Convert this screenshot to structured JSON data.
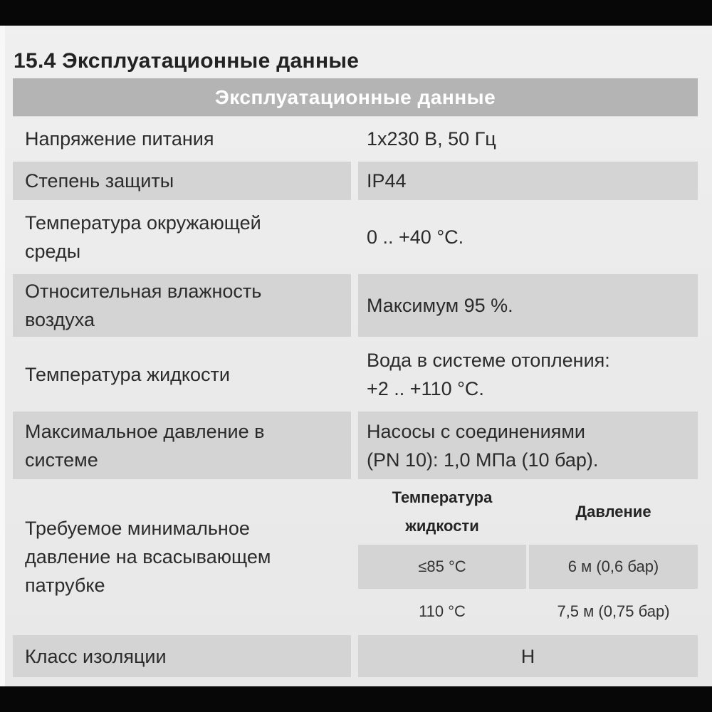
{
  "page": {
    "section_title": "15.4 Эксплуатационные данные"
  },
  "table": {
    "title": "Эксплуатационные данные",
    "rows": [
      {
        "label": "Напряжение питания",
        "value": "1x230 В, 50 Гц"
      },
      {
        "label": "Степень защиты",
        "value": "IP44"
      },
      {
        "label": "Температура окружающей\nсреды",
        "value": "0 .. +40 °C."
      },
      {
        "label": "Относительная влажность\nвоздуха",
        "value": "Максимум 95 %."
      },
      {
        "label": "Температура жидкости",
        "value": "Вода в системе отопления:\n+2 .. +110 °C."
      },
      {
        "label": "Максимальное давление в\nсистеме",
        "value": "Насосы с соединениями\n(PN 10): 1,0 МПа (10 бар)."
      }
    ],
    "inlet_pressure_row": {
      "label": "Требуемое минимальное\nдавление на всасывающем\nпатрубке",
      "col1_header": "Температура\nжидкости",
      "col2_header": "Давление",
      "rows": [
        {
          "temperature": "≤85 °C",
          "pressure": "6 м (0,6 бар)"
        },
        {
          "temperature": "110 °C",
          "pressure": "7,5 м (0,75 бар)"
        }
      ]
    },
    "insulation_row": {
      "label": "Класс изоляции",
      "value": "H"
    }
  },
  "colors": {
    "header_bar": "#b4b4b4",
    "row_shade": "#d4d4d4",
    "bar_black": "#070707",
    "text": "#2b2b2b"
  }
}
